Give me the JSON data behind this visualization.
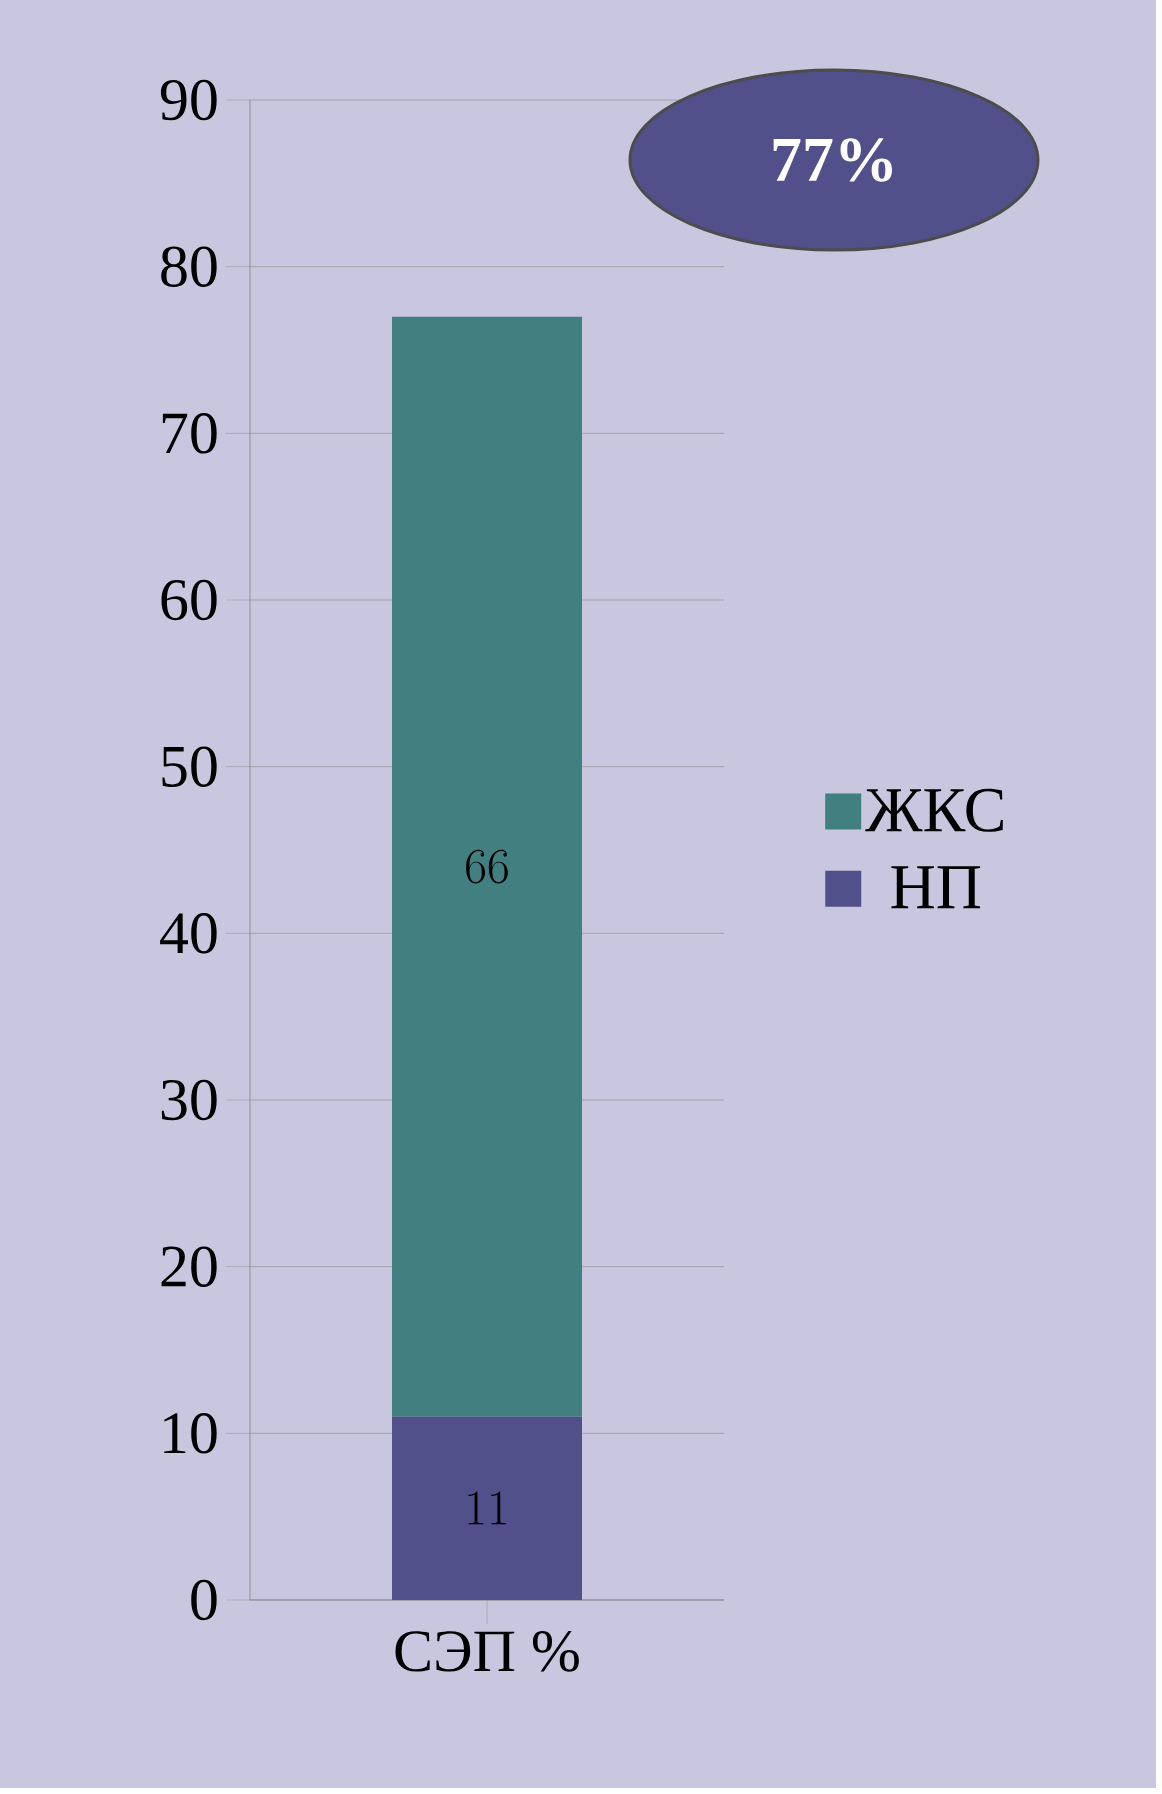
{
  "chart_data": {
    "type": "bar",
    "stacked": true,
    "categories": [
      "СЭП %"
    ],
    "series": [
      {
        "name": "НП",
        "color": "#51508a",
        "values": [
          11
        ]
      },
      {
        "name": "ЖКС",
        "color": "#427f80",
        "values": [
          66
        ]
      }
    ],
    "ylim": [
      0,
      90
    ],
    "yticks": [
      0,
      10,
      20,
      30,
      40,
      50,
      60,
      70,
      80,
      90
    ],
    "grid": "y",
    "legend": "right",
    "data_labels": true,
    "annotations": [
      "77%"
    ]
  }
}
